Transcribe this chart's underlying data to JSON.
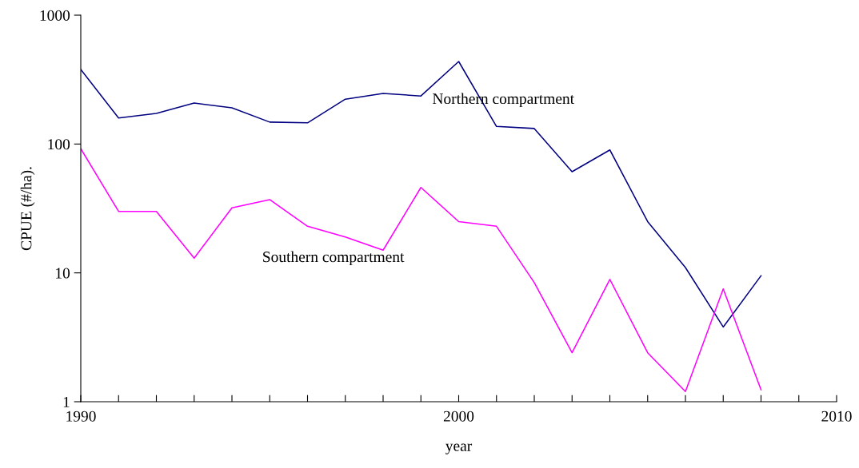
{
  "chart_data": {
    "type": "line",
    "xlabel": "year",
    "ylabel": "CPUE (#/ha).",
    "log": "y",
    "x": [
      1990,
      1991,
      1992,
      1993,
      1994,
      1995,
      1996,
      1997,
      1998,
      1999,
      2000,
      2001,
      2002,
      2003,
      2004,
      2005,
      2006,
      2007,
      2008
    ],
    "series": [
      {
        "name": "Northern compartment",
        "color": "#000080",
        "values": [
          379,
          159,
          173,
          208,
          191,
          148,
          146,
          223,
          247,
          236,
          437,
          137,
          132,
          61,
          90,
          25,
          11,
          3.8,
          9.5
        ]
      },
      {
        "name": "Southern compartment",
        "color": "#ff00ff",
        "values": [
          92,
          30,
          30,
          13,
          32,
          37,
          23,
          19,
          15,
          46,
          25,
          23,
          8.4,
          2.4,
          8.9,
          2.4,
          1.2,
          7.5,
          1.24
        ]
      }
    ],
    "xlim": [
      1990,
      2010
    ],
    "ylim": [
      1,
      1000
    ],
    "xticks": [
      1990,
      {
        "value": 1991,
        "label": null
      },
      {
        "value": 1992,
        "label": null
      },
      {
        "value": 1993,
        "label": null
      },
      {
        "value": 1994,
        "label": null
      },
      {
        "value": 1995,
        "label": null
      },
      {
        "value": 1996,
        "label": null
      },
      {
        "value": 1997,
        "label": null
      },
      {
        "value": 1998,
        "label": null
      },
      {
        "value": 1999,
        "label": null
      },
      2000,
      {
        "value": 2001,
        "label": null
      },
      {
        "value": 2002,
        "label": null
      },
      {
        "value": 2003,
        "label": null
      },
      {
        "value": 2004,
        "label": null
      },
      {
        "value": 2005,
        "label": null
      },
      {
        "value": 2006,
        "label": null
      },
      {
        "value": 2007,
        "label": null
      },
      {
        "value": 2008,
        "label": null
      },
      {
        "value": 2009,
        "label": null
      },
      2010
    ],
    "yticks": [
      1,
      10,
      100,
      1000
    ],
    "grid": false,
    "marker": "none",
    "line_style": "solid"
  }
}
